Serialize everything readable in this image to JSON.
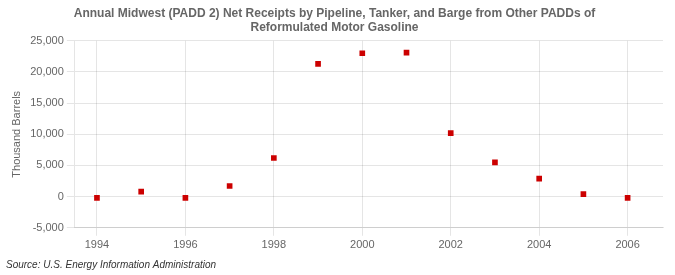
{
  "chart_data": {
    "type": "scatter",
    "title": "Annual Midwest (PADD 2) Net Receipts by Pipeline, Tanker, and Barge from Other PADDs of\nReformulated Motor Gasoline",
    "ylabel": "Thousand Barrels",
    "annotations": [
      "Source: U.S. Energy Information Administration"
    ],
    "x": [
      1994,
      1995,
      1996,
      1997,
      1998,
      1999,
      2000,
      2001,
      2002,
      2003,
      2004,
      2005,
      2006
    ],
    "values": [
      -200,
      800,
      -200,
      1700,
      6200,
      21300,
      23000,
      23100,
      10200,
      5500,
      2900,
      400,
      -200
    ],
    "color": "#cc0000",
    "marker": "square",
    "xlim": [
      1993.5,
      2006.8
    ],
    "xticks": [
      1994,
      1996,
      1998,
      2000,
      2002,
      2004,
      2006
    ],
    "ylim": [
      -5000,
      25000
    ],
    "yticks": [
      {
        "value": -5000,
        "label": "-5,000"
      },
      0,
      {
        "value": 5000,
        "label": "5,000"
      },
      {
        "value": 10000,
        "label": "10,000"
      },
      {
        "value": 15000,
        "label": "15,000"
      },
      {
        "value": 20000,
        "label": "20,000"
      },
      {
        "value": 25000,
        "label": "25,000"
      }
    ],
    "grid": true
  }
}
